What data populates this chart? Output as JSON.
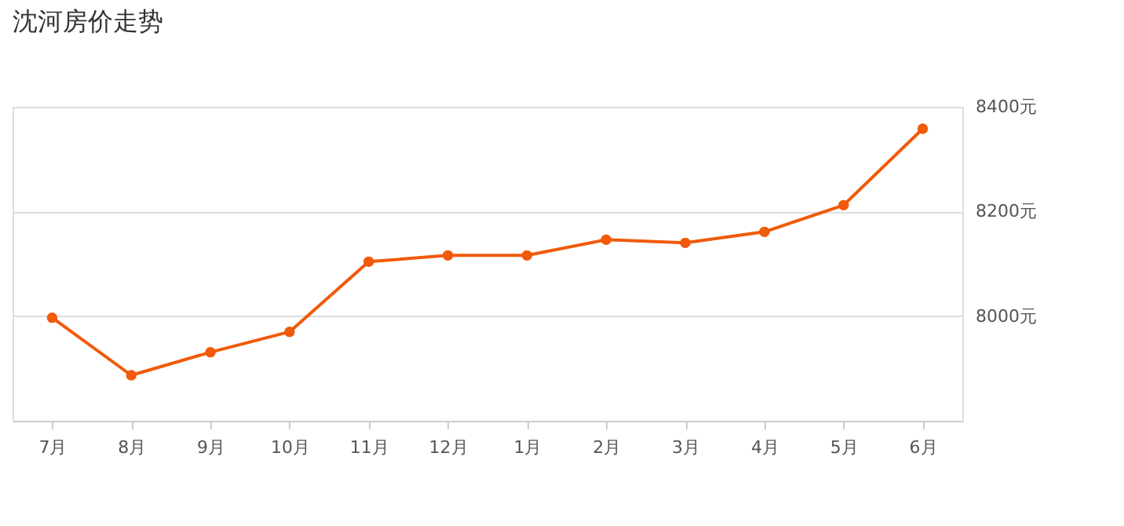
{
  "chart_data": {
    "type": "line",
    "title": "沈河房价走势",
    "categories": [
      "7月",
      "8月",
      "9月",
      "10月",
      "11月",
      "12月",
      "1月",
      "2月",
      "3月",
      "4月",
      "5月",
      "6月"
    ],
    "series": [
      {
        "color": "#f05a0a",
        "values": [
          7997,
          7887,
          7931,
          7970,
          8104,
          8116,
          8116,
          8146,
          8140,
          8161,
          8212,
          8358
        ]
      }
    ],
    "ylim": [
      7800,
      8400
    ],
    "yticks": [
      {
        "value": 8000,
        "label": "8000元"
      },
      {
        "value": 8200,
        "label": "8200元"
      },
      {
        "value": 8400,
        "label": "8400元"
      }
    ],
    "grid": "y",
    "marker": "circle",
    "line_style": "solid",
    "legend": false
  }
}
